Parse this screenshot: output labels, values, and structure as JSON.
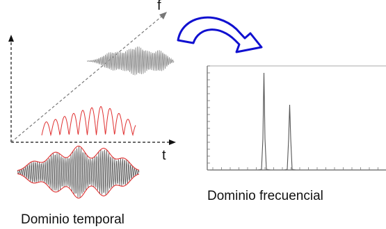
{
  "labels": {
    "f_axis": "f",
    "t_axis": "t",
    "frequency_domain": "Dominio frecuencial",
    "time_domain": "Dominio temporal"
  },
  "colors": {
    "signal_red": "#e03030",
    "gray_wave": "#909090",
    "dark_wave": "#555555",
    "transform_arrow": "#1010d0",
    "axis": "#111111",
    "spectrum_frame": "#444444"
  },
  "icons": {
    "transform": "curved-arrow-icon"
  }
}
